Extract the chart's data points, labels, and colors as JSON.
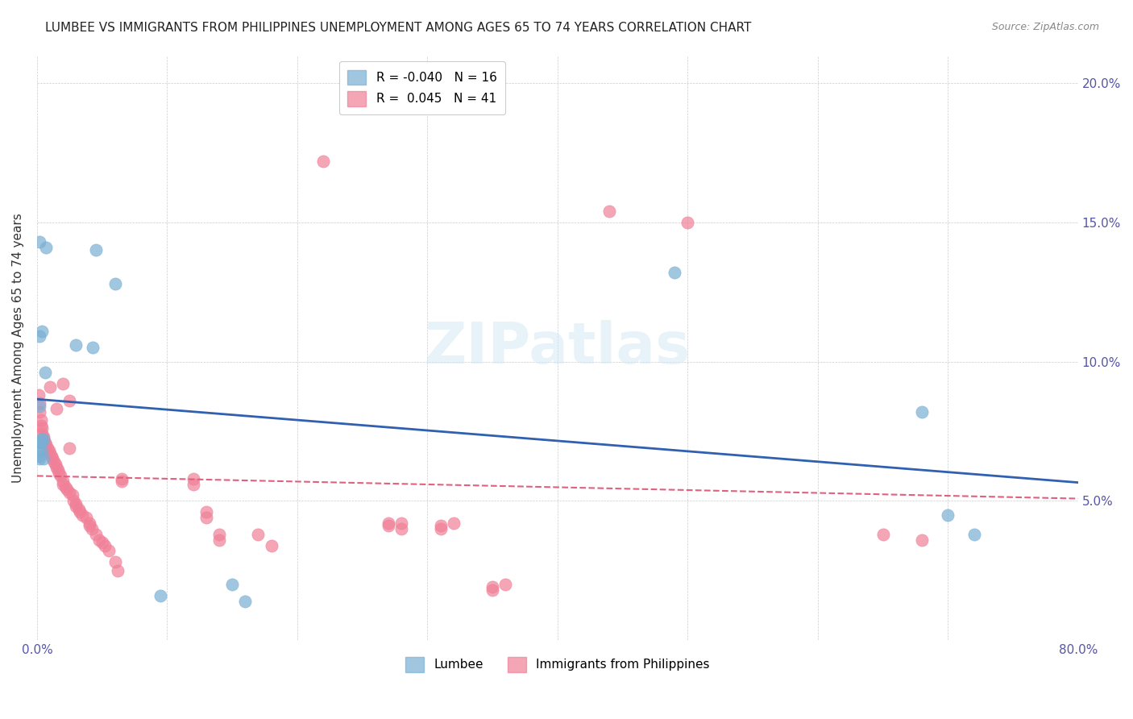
{
  "title": "LUMBEE VS IMMIGRANTS FROM PHILIPPINES UNEMPLOYMENT AMONG AGES 65 TO 74 YEARS CORRELATION CHART",
  "source": "Source: ZipAtlas.com",
  "ylabel": "Unemployment Among Ages 65 to 74 years",
  "xlim": [
    0,
    0.8
  ],
  "ylim": [
    0,
    0.21
  ],
  "lumbee_color": "#7aafd4",
  "philippines_color": "#f08098",
  "lumbee_line_color": "#3060b0",
  "philippines_line_color": "#e06080",
  "watermark": "ZIPatlas",
  "lumbee_points": [
    [
      0.002,
      0.109
    ],
    [
      0.004,
      0.111
    ],
    [
      0.006,
      0.096
    ],
    [
      0.002,
      0.143
    ],
    [
      0.007,
      0.141
    ],
    [
      0.03,
      0.106
    ],
    [
      0.002,
      0.084
    ],
    [
      0.003,
      0.072
    ],
    [
      0.005,
      0.072
    ],
    [
      0.003,
      0.071
    ],
    [
      0.002,
      0.071
    ],
    [
      0.001,
      0.068
    ],
    [
      0.004,
      0.068
    ],
    [
      0.001,
      0.066
    ],
    [
      0.005,
      0.065
    ],
    [
      0.002,
      0.065
    ],
    [
      0.045,
      0.14
    ],
    [
      0.043,
      0.105
    ],
    [
      0.06,
      0.128
    ],
    [
      0.095,
      0.016
    ],
    [
      0.15,
      0.02
    ],
    [
      0.16,
      0.014
    ],
    [
      0.49,
      0.132
    ],
    [
      0.68,
      0.082
    ],
    [
      0.7,
      0.045
    ],
    [
      0.72,
      0.038
    ]
  ],
  "philippines_points": [
    [
      0.001,
      0.088
    ],
    [
      0.002,
      0.085
    ],
    [
      0.002,
      0.082
    ],
    [
      0.003,
      0.079
    ],
    [
      0.003,
      0.077
    ],
    [
      0.004,
      0.076
    ],
    [
      0.004,
      0.074
    ],
    [
      0.005,
      0.073
    ],
    [
      0.005,
      0.072
    ],
    [
      0.006,
      0.071
    ],
    [
      0.007,
      0.07
    ],
    [
      0.008,
      0.069
    ],
    [
      0.009,
      0.068
    ],
    [
      0.01,
      0.067
    ],
    [
      0.011,
      0.066
    ],
    [
      0.012,
      0.065
    ],
    [
      0.013,
      0.064
    ],
    [
      0.014,
      0.063
    ],
    [
      0.015,
      0.062
    ],
    [
      0.016,
      0.061
    ],
    [
      0.017,
      0.06
    ],
    [
      0.018,
      0.059
    ],
    [
      0.02,
      0.057
    ],
    [
      0.02,
      0.056
    ],
    [
      0.022,
      0.055
    ],
    [
      0.023,
      0.054
    ],
    [
      0.025,
      0.053
    ],
    [
      0.027,
      0.052
    ],
    [
      0.028,
      0.05
    ],
    [
      0.03,
      0.049
    ],
    [
      0.03,
      0.048
    ],
    [
      0.032,
      0.047
    ],
    [
      0.033,
      0.046
    ],
    [
      0.035,
      0.045
    ],
    [
      0.038,
      0.044
    ],
    [
      0.04,
      0.042
    ],
    [
      0.04,
      0.041
    ],
    [
      0.042,
      0.04
    ],
    [
      0.045,
      0.038
    ],
    [
      0.048,
      0.036
    ],
    [
      0.05,
      0.035
    ],
    [
      0.052,
      0.034
    ],
    [
      0.055,
      0.032
    ],
    [
      0.06,
      0.028
    ],
    [
      0.062,
      0.025
    ],
    [
      0.01,
      0.091
    ],
    [
      0.015,
      0.083
    ],
    [
      0.025,
      0.086
    ],
    [
      0.02,
      0.092
    ],
    [
      0.025,
      0.069
    ],
    [
      0.065,
      0.058
    ],
    [
      0.065,
      0.057
    ],
    [
      0.12,
      0.058
    ],
    [
      0.12,
      0.056
    ],
    [
      0.13,
      0.046
    ],
    [
      0.13,
      0.044
    ],
    [
      0.14,
      0.038
    ],
    [
      0.14,
      0.036
    ],
    [
      0.17,
      0.038
    ],
    [
      0.18,
      0.034
    ],
    [
      0.27,
      0.042
    ],
    [
      0.27,
      0.041
    ],
    [
      0.28,
      0.042
    ],
    [
      0.28,
      0.04
    ],
    [
      0.31,
      0.041
    ],
    [
      0.31,
      0.04
    ],
    [
      0.32,
      0.042
    ],
    [
      0.35,
      0.019
    ],
    [
      0.35,
      0.018
    ],
    [
      0.36,
      0.02
    ],
    [
      0.44,
      0.154
    ],
    [
      0.5,
      0.15
    ],
    [
      0.22,
      0.172
    ],
    [
      0.65,
      0.038
    ],
    [
      0.68,
      0.036
    ]
  ]
}
